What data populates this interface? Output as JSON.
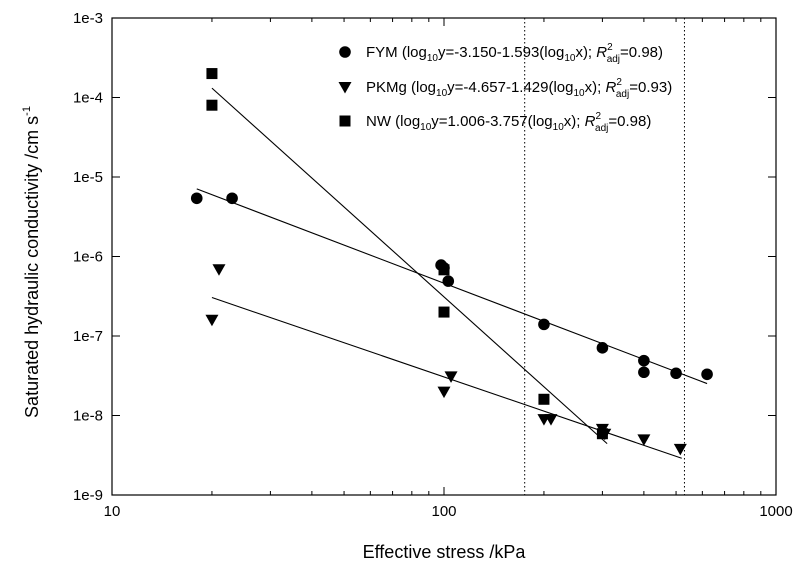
{
  "chart_data": {
    "type": "scatter",
    "xlabel": "Effective stress /kPa",
    "ylabel_main": "Saturated hydraulic conductivity /cm s",
    "ylabel_sup": "-1",
    "x_scale": "log",
    "y_scale": "log",
    "xlim": [
      10,
      1000
    ],
    "ylim": [
      1e-09,
      0.001
    ],
    "x_ticks": [
      {
        "value": 10,
        "label": "10"
      },
      {
        "value": 100,
        "label": "100"
      },
      {
        "value": 1000,
        "label": "1000"
      }
    ],
    "y_ticks": [
      {
        "value": 1e-09,
        "label": "1e-9"
      },
      {
        "value": 1e-08,
        "label": "1e-8"
      },
      {
        "value": 1e-07,
        "label": "1e-7"
      },
      {
        "value": 1e-06,
        "label": "1e-6"
      },
      {
        "value": 1e-05,
        "label": "1e-5"
      },
      {
        "value": 0.0001,
        "label": "1e-4"
      },
      {
        "value": 0.001,
        "label": "1e-3"
      }
    ],
    "reference_lines_x": [
      175,
      530
    ],
    "legend_position": "top-right",
    "grid": false,
    "series": [
      {
        "name": "FYM",
        "marker": "circle",
        "equation_parts": [
          "FYM (log",
          "10",
          "y=-3.150-1.593(log",
          "10",
          "x); ",
          "R",
          "2",
          "adj",
          "=0.98)"
        ],
        "fit": {
          "intercept": -3.15,
          "slope": -1.593,
          "x_range": [
            18,
            620
          ]
        },
        "points": [
          {
            "x": 18,
            "y": 5.4e-06
          },
          {
            "x": 23,
            "y": 5.4e-06
          },
          {
            "x": 98,
            "y": 7.8e-07
          },
          {
            "x": 100,
            "y": 7.2e-07
          },
          {
            "x": 103,
            "y": 4.9e-07
          },
          {
            "x": 200,
            "y": 1.4e-07
          },
          {
            "x": 300,
            "y": 7.1e-08
          },
          {
            "x": 400,
            "y": 4.9e-08
          },
          {
            "x": 400,
            "y": 3.5e-08
          },
          {
            "x": 500,
            "y": 3.4e-08
          },
          {
            "x": 620,
            "y": 3.3e-08
          }
        ]
      },
      {
        "name": "PKMg",
        "marker": "triangle-down",
        "equation_parts": [
          "PKMg (log",
          "10",
          "y=-4.657-1.429(log",
          "10",
          "x); ",
          "R",
          "2",
          "adj",
          "=0.93)"
        ],
        "fit": {
          "intercept": -4.657,
          "slope": -1.429,
          "x_range": [
            20,
            520
          ]
        },
        "points": [
          {
            "x": 20,
            "y": 1.6e-07
          },
          {
            "x": 21,
            "y": 6.9e-07
          },
          {
            "x": 100,
            "y": 2e-08
          },
          {
            "x": 105,
            "y": 3.1e-08
          },
          {
            "x": 200,
            "y": 9e-09
          },
          {
            "x": 210,
            "y": 9e-09
          },
          {
            "x": 300,
            "y": 6.8e-09
          },
          {
            "x": 305,
            "y": 5.9e-09
          },
          {
            "x": 400,
            "y": 5e-09
          },
          {
            "x": 515,
            "y": 3.8e-09
          }
        ]
      },
      {
        "name": "NW",
        "marker": "square",
        "equation_parts": [
          "NW (log",
          "10",
          "y=1.006-3.757(log",
          "10",
          "x); ",
          "R",
          "2",
          "adj",
          "=0.98)"
        ],
        "fit": {
          "intercept": 1.006,
          "slope": -3.757,
          "x_range": [
            20,
            310
          ]
        },
        "points": [
          {
            "x": 20,
            "y": 0.0002
          },
          {
            "x": 20,
            "y": 8e-05
          },
          {
            "x": 100,
            "y": 2e-07
          },
          {
            "x": 100,
            "y": 6.8e-07
          },
          {
            "x": 200,
            "y": 1.6e-08
          },
          {
            "x": 300,
            "y": 5.9e-09
          }
        ]
      }
    ]
  }
}
